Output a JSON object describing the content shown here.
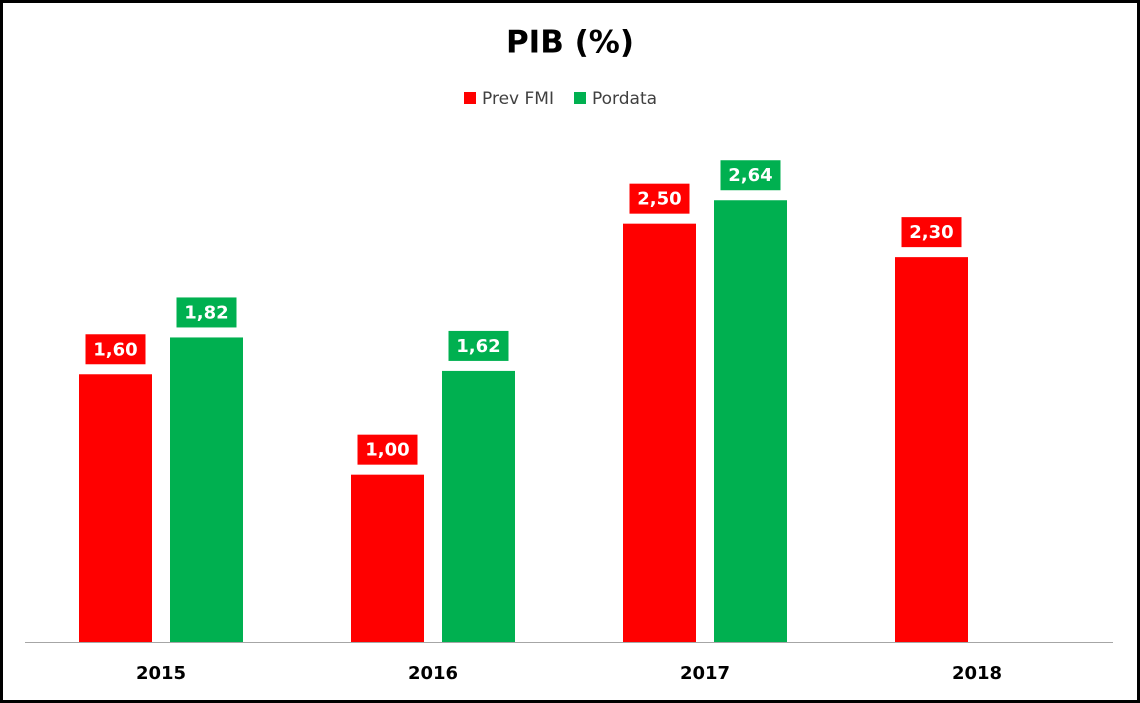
{
  "chart_data": {
    "type": "bar",
    "title": "PIB (%)",
    "categories": [
      "2015",
      "2016",
      "2017",
      "2018"
    ],
    "series": [
      {
        "name": "Prev FMI",
        "color": "#ff0000",
        "values": [
          1.6,
          1.0,
          2.5,
          2.3
        ],
        "value_labels": [
          "1,60",
          "1,00",
          "2,50",
          "2,30"
        ]
      },
      {
        "name": "Pordata",
        "color": "#00b050",
        "values": [
          1.82,
          1.62,
          2.64,
          null
        ],
        "value_labels": [
          "1,82",
          "1,62",
          "2,64",
          null
        ]
      }
    ],
    "ylim": [
      0,
      3
    ]
  }
}
